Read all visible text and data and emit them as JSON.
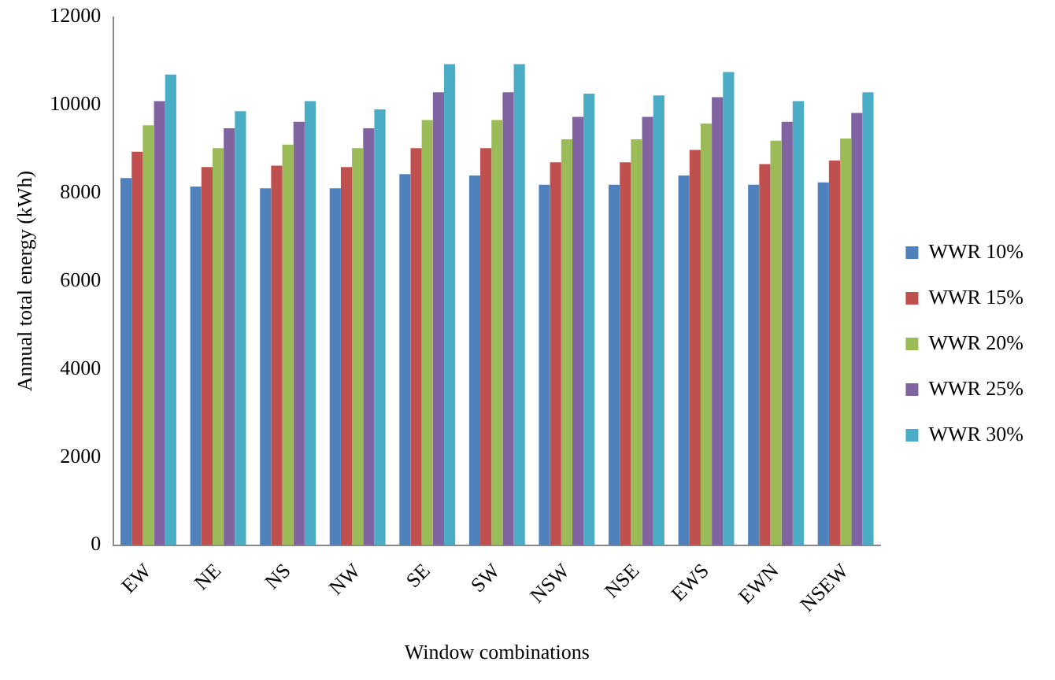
{
  "chart_data": {
    "type": "bar",
    "xlabel": "Window combinations",
    "ylabel": "Annual total energy (kWh)",
    "categories": [
      "EW",
      "NE",
      "NS",
      "NW",
      "SE",
      "SW",
      "NSW",
      "NSE",
      "EWS",
      "EWN",
      "NSEW"
    ],
    "series": [
      {
        "name": "WWR 10%",
        "color": "#4f81bd",
        "values": [
          8340,
          8150,
          8110,
          8110,
          8430,
          8400,
          8190,
          8190,
          8400,
          8190,
          8240
        ]
      },
      {
        "name": "WWR 15%",
        "color": "#c0504d",
        "values": [
          8940,
          8590,
          8620,
          8590,
          9020,
          9020,
          8700,
          8700,
          8980,
          8660,
          8740
        ]
      },
      {
        "name": "WWR 20%",
        "color": "#9bbb59",
        "values": [
          9540,
          9020,
          9100,
          9020,
          9660,
          9660,
          9220,
          9220,
          9580,
          9190,
          9240
        ]
      },
      {
        "name": "WWR 25%",
        "color": "#8064a2",
        "values": [
          10090,
          9470,
          9620,
          9470,
          10290,
          10290,
          9730,
          9730,
          10180,
          9620,
          9820
        ]
      },
      {
        "name": "WWR 30%",
        "color": "#4bacc6",
        "values": [
          10690,
          9860,
          10090,
          9900,
          10930,
          10930,
          10260,
          10220,
          10750,
          10090,
          10290
        ]
      }
    ],
    "ylim": [
      0,
      12000
    ],
    "yticks": [
      0,
      2000,
      4000,
      6000,
      8000,
      10000,
      12000
    ],
    "grid": false,
    "legend": "right"
  }
}
